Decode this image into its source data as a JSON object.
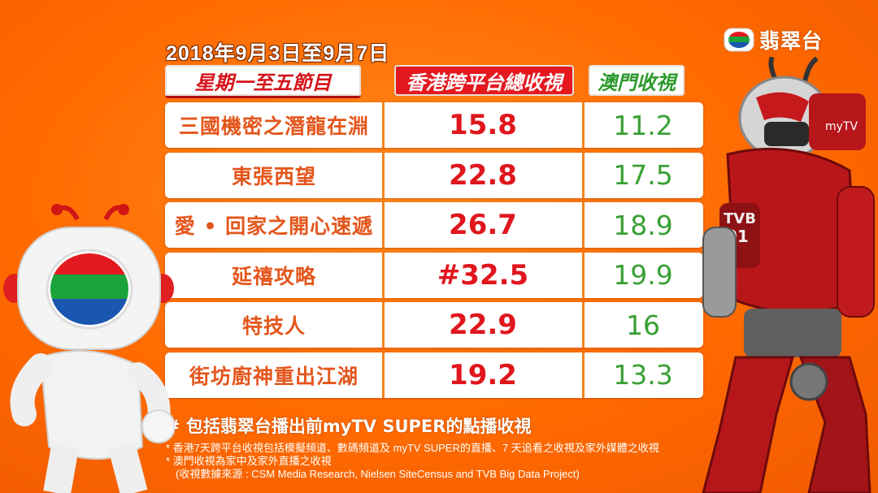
{
  "brand": {
    "logo_text": "翡翠台",
    "colors": {
      "bg": "#ff6a00",
      "red": "#e0161d",
      "green": "#3aa034",
      "orange": "#e4561c"
    }
  },
  "date_range": "2018年9月3日至9月7日",
  "headers": {
    "program": "星期一至五節目",
    "hk_rating": "香港跨平台總收視",
    "macau_rating": "澳門收視"
  },
  "chart_data": {
    "type": "table",
    "columns": [
      "星期一至五節目",
      "香港跨平台總收視",
      "澳門收視"
    ],
    "rows": [
      {
        "program": "三國機密之潛龍在淵",
        "hk": "15.8",
        "macau": "11.2"
      },
      {
        "program": "東張西望",
        "hk": "22.8",
        "macau": "17.5"
      },
      {
        "program": "愛 • 回家之開心速遞",
        "hk": "26.7",
        "macau": "18.9"
      },
      {
        "program": "延禧攻略",
        "hk": "#32.5",
        "macau": "19.9"
      },
      {
        "program": "特技人",
        "hk": "22.9",
        "macau": "16"
      },
      {
        "program": "街坊廚神重出江湖",
        "hk": "19.2",
        "macau": "13.3"
      }
    ]
  },
  "notes": {
    "hash_note": "# 包括翡翠台播出前myTV SUPER的點播收視",
    "star_note_1": "* 香港7天跨平台收視包括模擬頻道、數碼頻道及 myTV SUPER的直播、7 天追看之收視及家外媒體之收視",
    "star_note_2": "* 澳門收視為家中及家外直播之收視",
    "source": "(收視數據來源 : CSM Media Research, Nielsen SiteCensus and TVB Big Data Project)"
  }
}
